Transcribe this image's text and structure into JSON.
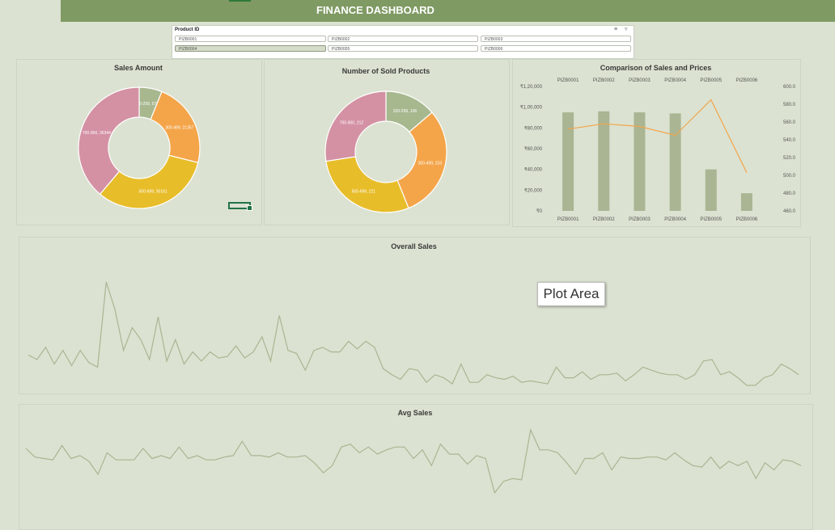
{
  "dashboard": {
    "title": "FINANCE DASHBOARD"
  },
  "slicer": {
    "header": "Product ID",
    "items": [
      "PIZB0001",
      "PIZB0002",
      "PIZB0003",
      "PIZB0004",
      "PIZB0005",
      "PIZB0006"
    ],
    "selected": "PIZB0004",
    "selected_fill": "#d5dcc8"
  },
  "tooltip": {
    "text": "Plot Area"
  },
  "colors": {
    "green": "#a7b88f",
    "orange": "#f4a54a",
    "yellow": "#e8bd2a",
    "pink": "#d491a4",
    "line": "#f4a54a",
    "series": "#a9b593",
    "title_bar": "#7f9a63"
  },
  "chart_data": [
    {
      "type": "pie",
      "title": "Sales Amount",
      "labels": [
        "100-299",
        "300-499",
        "500-699",
        "700-900"
      ],
      "values": [
        5705,
        21357,
        30161,
        36344
      ],
      "data_labels": [
        "100-299, 5705",
        "300-499, 21357",
        "500-699, 30161",
        "700-900, 36344"
      ]
    },
    {
      "type": "pie",
      "title": "Number of Sold Products",
      "labels": [
        "100-299",
        "300-499",
        "500-699",
        "700-900"
      ],
      "values": [
        106,
        233,
        221,
        212
      ],
      "data_labels": [
        "100-299, 106",
        "300-499, 233",
        "500-699, 221",
        "700-900, 212"
      ]
    },
    {
      "type": "bar",
      "title": "Comparison of Sales and Prices",
      "categories": [
        "PIZB0001",
        "PIZB0002",
        "PIZB0003",
        "PIZB0004",
        "PIZB0005",
        "PIZB0006"
      ],
      "series": [
        {
          "values": [
            95000,
            96000,
            95000,
            94000,
            40000,
            17000
          ]
        },
        {
          "type": "line",
          "values": [
            552,
            558,
            555,
            545,
            585,
            503
          ]
        }
      ],
      "ylim": [
        0,
        120000
      ],
      "yticks": [
        "₹0",
        "₹20,000",
        "₹40,000",
        "₹60,000",
        "₹80,000",
        "₹1,00,000",
        "₹1,20,000"
      ],
      "y2lim": [
        460,
        600
      ],
      "y2ticks": [
        "460.0",
        "480.0",
        "500.0",
        "520.0",
        "540.0",
        "560.0",
        "580.0",
        "600.0"
      ]
    },
    {
      "type": "line",
      "title": "Overall Sales",
      "values": [
        30,
        27,
        35,
        24,
        33,
        23,
        33,
        25,
        22,
        78,
        60,
        33,
        48,
        40,
        27,
        55,
        26,
        40,
        24,
        32,
        26,
        32,
        28,
        29,
        36,
        28,
        32,
        42,
        26,
        56,
        33,
        31,
        20,
        33,
        35,
        32,
        32,
        39,
        34,
        39,
        35,
        21,
        17,
        14,
        21,
        20,
        12,
        17,
        15,
        11,
        24,
        12,
        12,
        17,
        15,
        14,
        16,
        12,
        13,
        12,
        11,
        22,
        15,
        15,
        19,
        14,
        17,
        17,
        18,
        13,
        17,
        22,
        20,
        18,
        17,
        17,
        14,
        17,
        26,
        27,
        17,
        19,
        15,
        10,
        10,
        15,
        17,
        24,
        21,
        17
      ]
    },
    {
      "type": "line",
      "title": "Avg Sales",
      "values": [
        51,
        45,
        44,
        43,
        53,
        44,
        46,
        42,
        33,
        48,
        43,
        43,
        43,
        51,
        44,
        46,
        44,
        52,
        44,
        46,
        43,
        43,
        45,
        46,
        56,
        46,
        46,
        45,
        48,
        45,
        45,
        46,
        41,
        34,
        39,
        52,
        54,
        48,
        52,
        47,
        50,
        52,
        52,
        44,
        50,
        39,
        54,
        47,
        47,
        40,
        46,
        44,
        20,
        28,
        30,
        29,
        64,
        50,
        50,
        48,
        41,
        33,
        44,
        44,
        48,
        36,
        45,
        44,
        44,
        45,
        45,
        43,
        48,
        43,
        39,
        38,
        45,
        37,
        42,
        39,
        42,
        30,
        41,
        36,
        43,
        42,
        39
      ]
    }
  ]
}
